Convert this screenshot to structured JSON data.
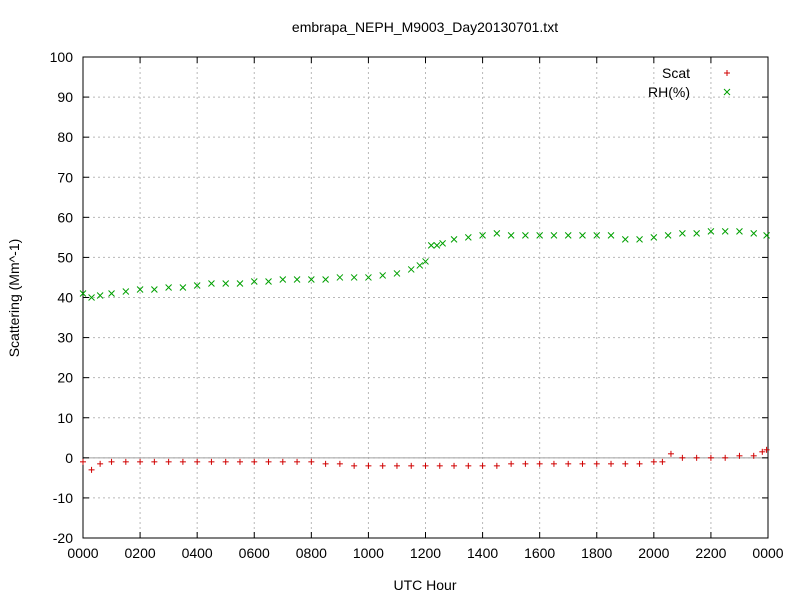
{
  "chart_data": {
    "type": "scatter",
    "title": "embrapa_NEPH_M9003_Day20130701.txt",
    "xlabel": "UTC Hour",
    "ylabel": "Scattering (Mm^-1)",
    "xlim": [
      0,
      2400
    ],
    "ylim": [
      -20,
      100
    ],
    "grid": true,
    "legend": "top-right",
    "x_ticks": [
      "0000",
      "0200",
      "0400",
      "0600",
      "0800",
      "1000",
      "1200",
      "1400",
      "1600",
      "1800",
      "2000",
      "2200",
      "0000"
    ],
    "y_ticks": [
      "-20",
      "-10",
      "0",
      "10",
      "20",
      "30",
      "40",
      "50",
      "60",
      "70",
      "80",
      "90",
      "100"
    ],
    "series": [
      {
        "name": "Scat",
        "marker": "plus",
        "color": "#d00000",
        "x": [
          0,
          30,
          60,
          100,
          150,
          200,
          250,
          300,
          350,
          400,
          450,
          500,
          550,
          600,
          650,
          700,
          750,
          800,
          850,
          900,
          950,
          1000,
          1050,
          1100,
          1150,
          1200,
          1250,
          1300,
          1350,
          1400,
          1450,
          1500,
          1550,
          1600,
          1650,
          1700,
          1750,
          1800,
          1850,
          1900,
          1950,
          2000,
          2030,
          2060,
          2100,
          2150,
          2200,
          2250,
          2300,
          2350,
          2380,
          2395
        ],
        "y": [
          -1,
          -3,
          -1.5,
          -1,
          -1,
          -1,
          -1,
          -1,
          -1,
          -1,
          -1,
          -1,
          -1,
          -1,
          -1,
          -1,
          -1,
          -1,
          -1.5,
          -1.5,
          -2,
          -2,
          -2,
          -2,
          -2,
          -2,
          -2,
          -2,
          -2,
          -2,
          -2,
          -1.5,
          -1.5,
          -1.5,
          -1.5,
          -1.5,
          -1.5,
          -1.5,
          -1.5,
          -1.5,
          -1.5,
          -1,
          -1,
          1,
          0,
          0,
          0,
          0,
          0.5,
          0.5,
          1.5,
          2
        ]
      },
      {
        "name": "RH(%)",
        "marker": "cross",
        "color": "#00a000",
        "x": [
          0,
          30,
          60,
          100,
          150,
          200,
          250,
          300,
          350,
          400,
          450,
          500,
          550,
          600,
          650,
          700,
          750,
          800,
          850,
          900,
          950,
          1000,
          1050,
          1100,
          1150,
          1180,
          1200,
          1220,
          1240,
          1260,
          1300,
          1350,
          1400,
          1450,
          1500,
          1550,
          1600,
          1650,
          1700,
          1750,
          1800,
          1850,
          1900,
          1950,
          2000,
          2050,
          2100,
          2150,
          2200,
          2250,
          2300,
          2350,
          2395
        ],
        "y": [
          41,
          40,
          40.5,
          41,
          41.5,
          42,
          42,
          42.5,
          42.5,
          43,
          43.5,
          43.5,
          43.5,
          44,
          44,
          44.5,
          44.5,
          44.5,
          44.5,
          45,
          45,
          45,
          45.5,
          46,
          47,
          48,
          49,
          53,
          53,
          53.5,
          54.5,
          55,
          55.5,
          56,
          55.5,
          55.5,
          55.5,
          55.5,
          55.5,
          55.5,
          55.5,
          55.5,
          54.5,
          54.5,
          55,
          55.5,
          56,
          56,
          56.5,
          56.5,
          56.5,
          56,
          55.5
        ]
      }
    ]
  }
}
